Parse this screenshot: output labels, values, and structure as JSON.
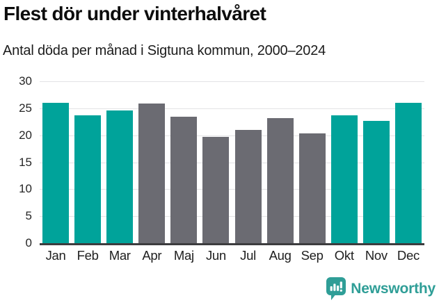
{
  "header": {
    "title": "Flest dör under vinterhalvåret",
    "subtitle": "Antal döda per månad i Sigtuna kommun, 2000–2024"
  },
  "chart_data": {
    "type": "bar",
    "title": "Flest dör under vinterhalvåret",
    "subtitle": "Antal döda per månad i Sigtuna kommun, 2000–2024",
    "categories": [
      "Jan",
      "Feb",
      "Mar",
      "Apr",
      "Maj",
      "Jun",
      "Jul",
      "Aug",
      "Sep",
      "Okt",
      "Nov",
      "Dec"
    ],
    "values": [
      26.0,
      23.7,
      24.6,
      25.9,
      23.4,
      19.7,
      21.0,
      23.2,
      20.3,
      23.7,
      22.7,
      26.0
    ],
    "bar_colors": [
      "#00a39a",
      "#00a39a",
      "#00a39a",
      "#6b6b72",
      "#6b6b72",
      "#6b6b72",
      "#6b6b72",
      "#6b6b72",
      "#6b6b72",
      "#00a39a",
      "#00a39a",
      "#00a39a"
    ],
    "palette": {
      "winter": "#00a39a",
      "summer": "#6b6b72"
    },
    "xlabel": "",
    "ylabel": "",
    "ylim": [
      0,
      30
    ],
    "yticks": [
      0,
      5,
      10,
      15,
      20,
      25,
      30
    ],
    "grid": true,
    "legend": "none"
  },
  "footer": {
    "brand": "Newsworthy",
    "brand_color": "#2f9e97"
  }
}
